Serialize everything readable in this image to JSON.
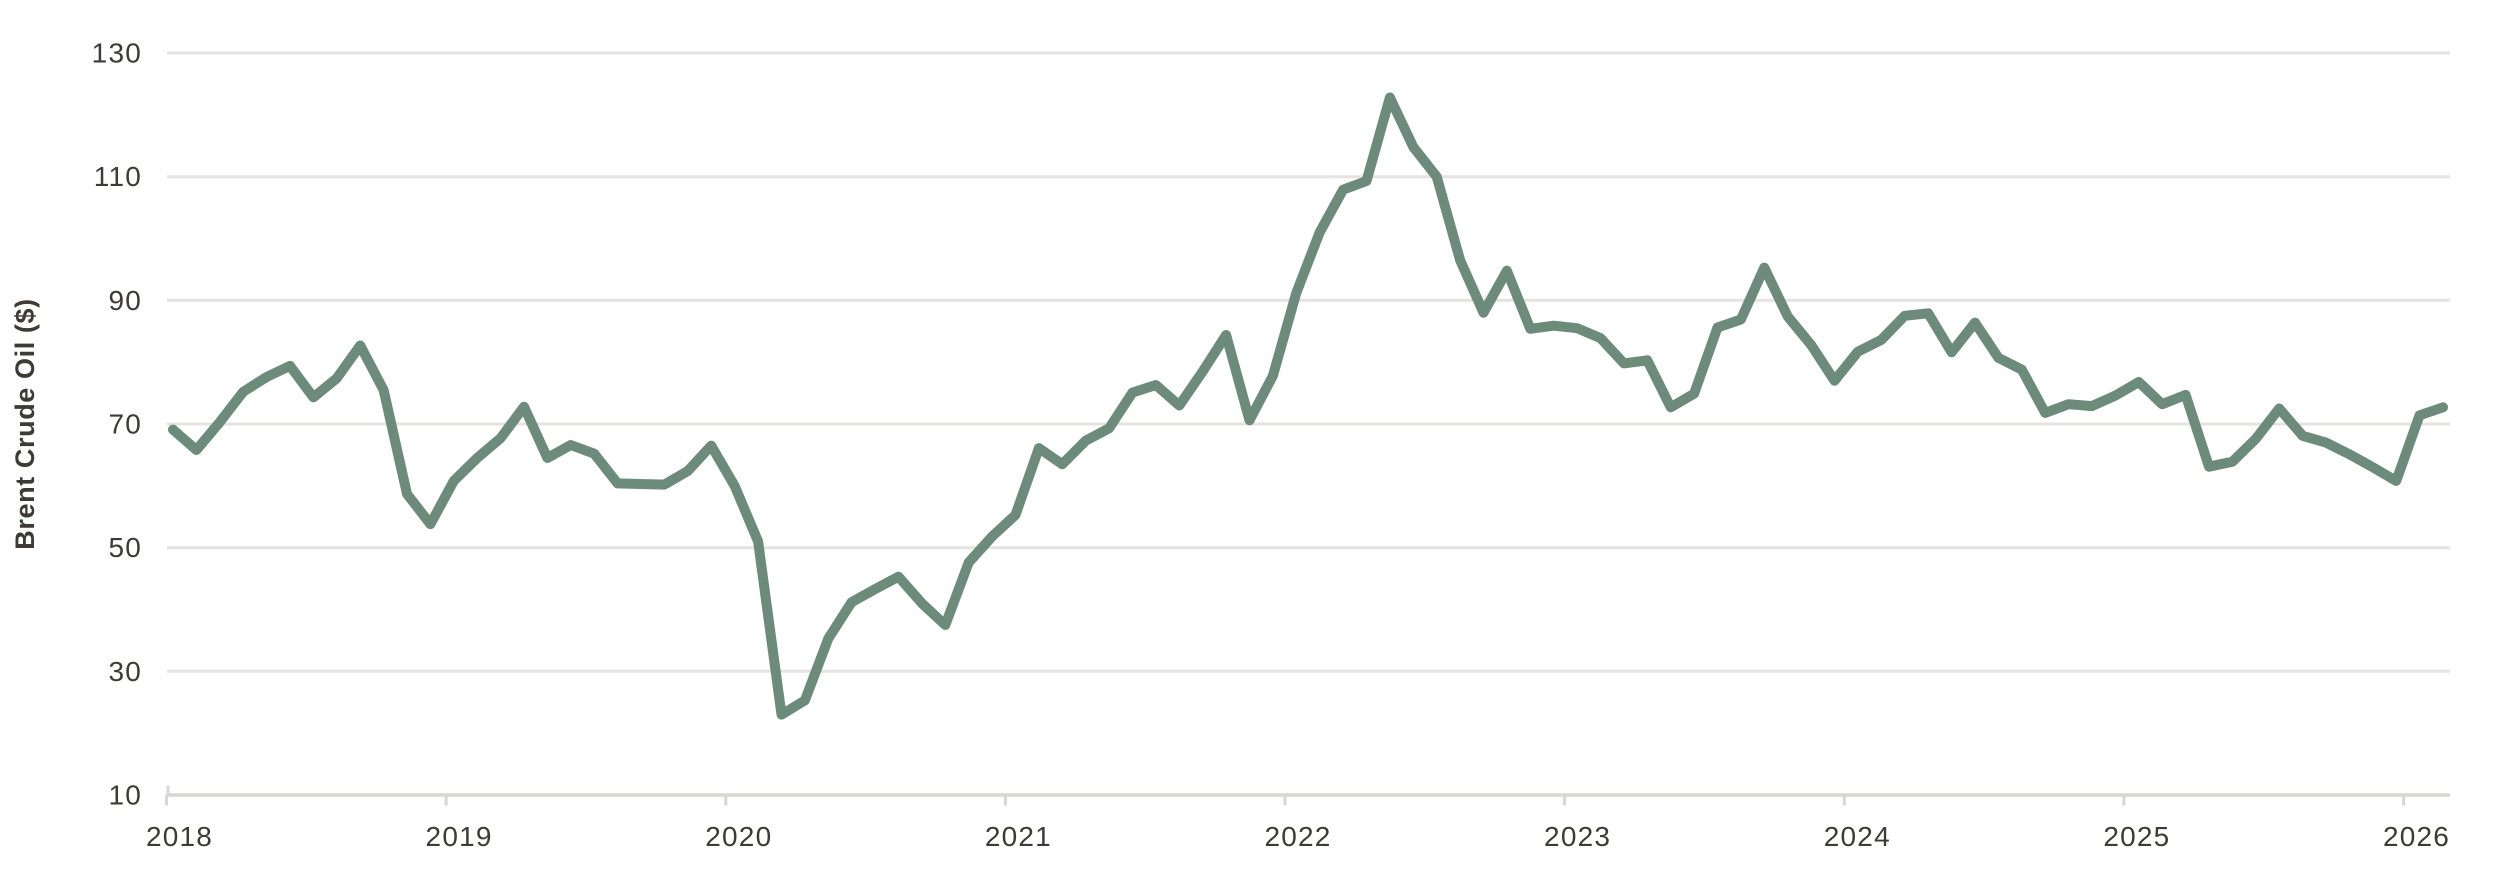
{
  "page": {
    "background_color": "#ffffff"
  },
  "axes": {
    "y_title": "Brent Crude Oil ($)",
    "y_tick_labels": [
      "130",
      "110",
      "90",
      "70",
      "50",
      "30",
      "10"
    ],
    "x_tick_labels": [
      "2018",
      "2019",
      "2020",
      "2021",
      "2022",
      "2023",
      "2024",
      "2025",
      "2026"
    ]
  },
  "colors": {
    "line": "#6d8b7b",
    "gridline": "#e5e3e1",
    "axis_line": "#d9d6d3",
    "text": "#3e3a35",
    "background": "#ffffff"
  },
  "chart_data": {
    "type": "line",
    "title": "",
    "xlabel": "",
    "ylabel": "Brent Crude Oil ($)",
    "ylim": [
      10,
      130
    ],
    "y_ticks": [
      130,
      110,
      90,
      70,
      50,
      30,
      10
    ],
    "x_ticks": [
      2018,
      2019,
      2020,
      2021,
      2022,
      2023,
      2024,
      2025,
      2026
    ],
    "grid": "horizontal",
    "legend": "none",
    "frequency": "monthly (end-of-month price)",
    "series": [
      {
        "name": "Brent Crude Oil ($)",
        "color": "#6d8b7b",
        "x": [
          "2018-01",
          "2018-02",
          "2018-03",
          "2018-04",
          "2018-05",
          "2018-06",
          "2018-07",
          "2018-08",
          "2018-09",
          "2018-10",
          "2018-11",
          "2018-12",
          "2019-01",
          "2019-02",
          "2019-03",
          "2019-04",
          "2019-05",
          "2019-06",
          "2019-07",
          "2019-08",
          "2019-09",
          "2019-10",
          "2019-11",
          "2019-12",
          "2020-01",
          "2020-02",
          "2020-03",
          "2020-04",
          "2020-05",
          "2020-06",
          "2020-07",
          "2020-08",
          "2020-09",
          "2020-10",
          "2020-11",
          "2020-12",
          "2021-01",
          "2021-02",
          "2021-03",
          "2021-04",
          "2021-05",
          "2021-06",
          "2021-07",
          "2021-08",
          "2021-09",
          "2021-10",
          "2021-11",
          "2021-12",
          "2022-01",
          "2022-02",
          "2022-03",
          "2022-04",
          "2022-05",
          "2022-06",
          "2022-07",
          "2022-08",
          "2022-09",
          "2022-10",
          "2022-11",
          "2022-12",
          "2023-01",
          "2023-02",
          "2023-03",
          "2023-04",
          "2023-05",
          "2023-06",
          "2023-07",
          "2023-08",
          "2023-09",
          "2023-10",
          "2023-11",
          "2023-12",
          "2024-01",
          "2024-02",
          "2024-03",
          "2024-04",
          "2024-05",
          "2024-06",
          "2024-07",
          "2024-08",
          "2024-09",
          "2024-10",
          "2024-11",
          "2024-12",
          "2025-01",
          "2025-02",
          "2025-03",
          "2025-04",
          "2025-05",
          "2025-06",
          "2025-07",
          "2025-08",
          "2025-09",
          "2025-10",
          "2025-11",
          "2025-12",
          "2026-01",
          "2026-02"
        ],
        "values": [
          69.1,
          65.8,
          70.3,
          75.2,
          77.6,
          79.4,
          74.3,
          77.4,
          82.7,
          75.5,
          58.7,
          53.8,
          60.8,
          64.5,
          67.7,
          72.8,
          64.5,
          66.6,
          65.2,
          60.4,
          60.3,
          60.2,
          62.4,
          66.5,
          60.0,
          51.0,
          23.0,
          25.3,
          35.3,
          41.2,
          43.3,
          45.3,
          41.0,
          37.5,
          47.6,
          51.8,
          55.3,
          66.1,
          63.5,
          67.3,
          69.3,
          75.1,
          76.3,
          73.0,
          78.5,
          84.4,
          70.6,
          77.8,
          91.2,
          101.0,
          107.9,
          109.3,
          122.8,
          114.8,
          110.0,
          96.5,
          88.0,
          94.8,
          85.4,
          85.9,
          85.5,
          83.9,
          79.8,
          80.3,
          72.7,
          74.9,
          85.6,
          86.9,
          95.3,
          87.4,
          82.8,
          77.0,
          81.7,
          83.6,
          87.5,
          87.9,
          81.6,
          86.4,
          80.7,
          78.8,
          71.8,
          73.2,
          72.9,
          74.6,
          76.8,
          73.2,
          74.7,
          63.1,
          63.9,
          67.6,
          72.5,
          68.1,
          67.0,
          65.1,
          63.0,
          60.8,
          71.4,
          72.7
        ]
      }
    ]
  }
}
